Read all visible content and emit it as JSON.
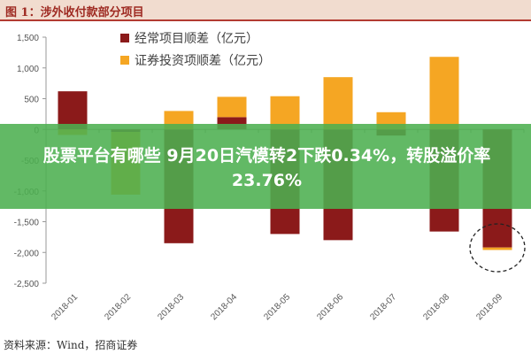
{
  "figure_title": "图 1：涉外收付款部分项目",
  "source_text": "资料来源：Wind，招商证券",
  "banner_text": "股票平台有哪些 9月20日汽模转2下跌0.34%，转股溢价率23.76%",
  "chart_data": {
    "type": "bar",
    "stacked": true,
    "categories": [
      "2018-01",
      "2018-02",
      "2018-03",
      "2018-04",
      "2018-05",
      "2018-06",
      "2018-07",
      "2018-08",
      "2018-09"
    ],
    "series": [
      {
        "name": "经常项目顺差（亿元）",
        "color": "#8b1a1a",
        "values": [
          620,
          -40,
          -1850,
          200,
          -1700,
          -1800,
          -100,
          -1660,
          -1920
        ]
      },
      {
        "name": "证券投资项顺差（亿元）",
        "color": "#f5a623",
        "values": [
          -90,
          -1020,
          300,
          330,
          540,
          850,
          280,
          1180,
          -40
        ]
      }
    ],
    "other_fill_color": "#8c8060",
    "ylim": [
      -2500,
      1500
    ],
    "yticks": [
      "1,500",
      "1,000",
      "500",
      "0",
      "-500",
      "-1,000",
      "-1,500",
      "-2,000",
      "-2,500"
    ],
    "ytick_values": [
      1500,
      1000,
      500,
      0,
      -500,
      -1000,
      -1500,
      -2000,
      -2500
    ],
    "grid": false,
    "legend_position": "top",
    "annotation": "dashed circle around 2018-09 bar"
  }
}
